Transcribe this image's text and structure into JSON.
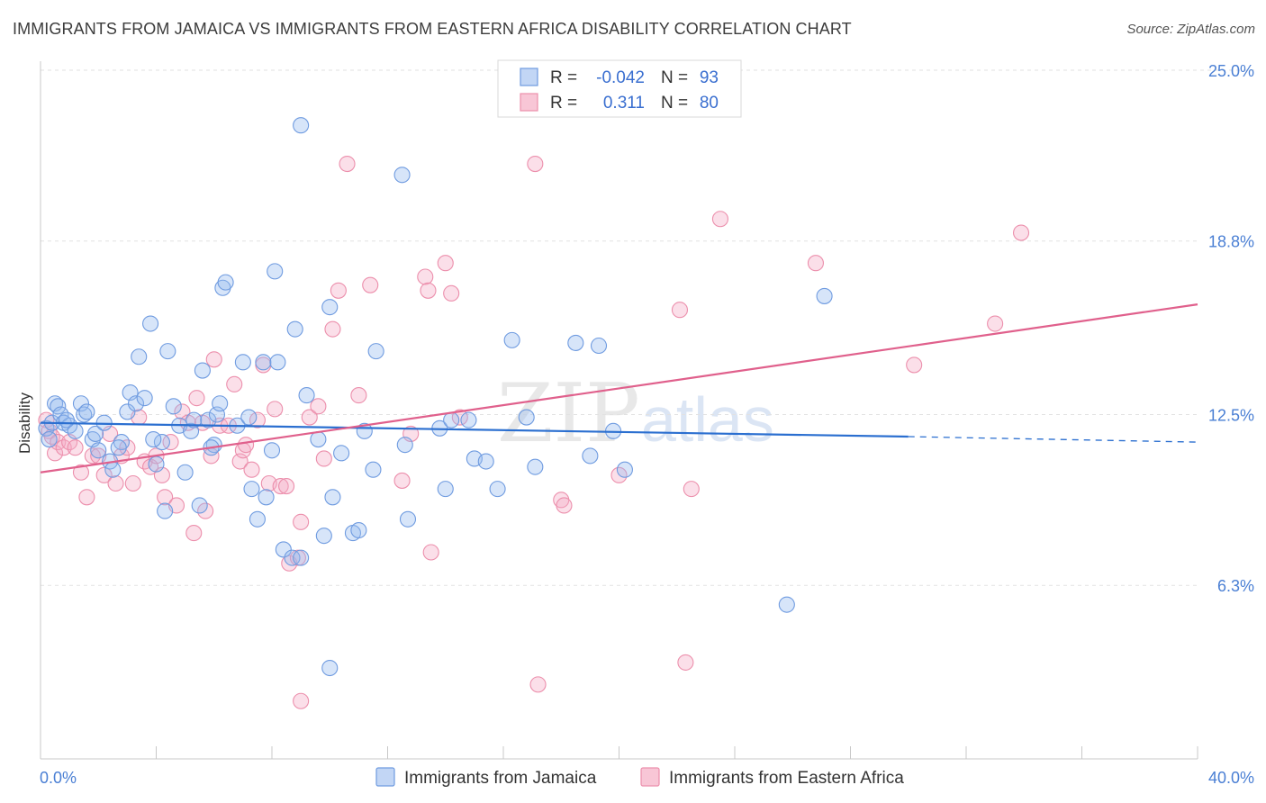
{
  "header": {
    "title": "IMMIGRANTS FROM JAMAICA VS IMMIGRANTS FROM EASTERN AFRICA DISABILITY CORRELATION CHART",
    "source": "Source: ZipAtlas.com"
  },
  "watermark": {
    "zip": "ZIP",
    "atlas": "atlas"
  },
  "legend": {
    "rows": [
      {
        "r_label": "R =",
        "r_value": "-0.042",
        "n_label": "N =",
        "n_value": "93"
      },
      {
        "r_label": "R =",
        "r_value": "0.311",
        "n_label": "N =",
        "n_value": "80"
      }
    ]
  },
  "chart_data": {
    "type": "scatter",
    "title": "IMMIGRANTS FROM JAMAICA VS IMMIGRANTS FROM EASTERN AFRICA DISABILITY CORRELATION CHART",
    "xlabel": "",
    "ylabel": "Disability",
    "xlim": [
      0,
      40
    ],
    "ylim": [
      0,
      25
    ],
    "x_tick_labels": [
      "0.0%",
      "40.0%"
    ],
    "y_tick_labels": [
      "25.0%",
      "18.8%",
      "12.5%",
      "6.3%"
    ],
    "y_tick_values": [
      25.0,
      18.8,
      12.5,
      6.3
    ],
    "grid": true,
    "legend_position": "top-center",
    "colors": {
      "jamaica": "#6f9be0",
      "eastern_africa": "#ec8fac",
      "jamaica_line": "#2b6fd0",
      "eastern_africa_line": "#e0608c"
    },
    "series": [
      {
        "name": "Immigrants from Jamaica",
        "r": -0.042,
        "n": 93,
        "trend": {
          "x": [
            0,
            30
          ],
          "y": [
            12.2,
            11.7
          ],
          "dashed_to_x": 40,
          "dashed_end_y": 11.5
        },
        "points": [
          [
            0.2,
            12.0
          ],
          [
            0.3,
            11.6
          ],
          [
            0.4,
            12.2
          ],
          [
            0.5,
            12.9
          ],
          [
            0.6,
            12.8
          ],
          [
            0.7,
            12.5
          ],
          [
            0.8,
            12.2
          ],
          [
            1.0,
            12.1
          ],
          [
            1.2,
            11.9
          ],
          [
            1.4,
            12.9
          ],
          [
            1.5,
            12.5
          ],
          [
            1.8,
            11.6
          ],
          [
            1.9,
            11.8
          ],
          [
            2.0,
            11.2
          ],
          [
            2.2,
            12.2
          ],
          [
            2.4,
            10.8
          ],
          [
            2.5,
            10.5
          ],
          [
            2.8,
            11.5
          ],
          [
            3.0,
            12.6
          ],
          [
            3.1,
            13.3
          ],
          [
            3.3,
            12.9
          ],
          [
            3.4,
            14.6
          ],
          [
            3.6,
            13.1
          ],
          [
            3.8,
            15.8
          ],
          [
            4.0,
            10.7
          ],
          [
            4.2,
            11.5
          ],
          [
            4.3,
            9.0
          ],
          [
            4.4,
            14.8
          ],
          [
            4.6,
            12.8
          ],
          [
            4.8,
            12.1
          ],
          [
            5.0,
            10.4
          ],
          [
            5.2,
            11.9
          ],
          [
            5.3,
            12.3
          ],
          [
            5.5,
            9.2
          ],
          [
            5.6,
            14.1
          ],
          [
            5.8,
            12.3
          ],
          [
            6.0,
            11.4
          ],
          [
            6.1,
            12.5
          ],
          [
            6.2,
            12.9
          ],
          [
            6.3,
            17.1
          ],
          [
            6.4,
            17.3
          ],
          [
            6.8,
            12.1
          ],
          [
            7.0,
            14.4
          ],
          [
            7.2,
            12.4
          ],
          [
            7.3,
            9.8
          ],
          [
            7.5,
            8.7
          ],
          [
            7.7,
            14.4
          ],
          [
            7.8,
            9.5
          ],
          [
            8.0,
            11.2
          ],
          [
            8.1,
            17.7
          ],
          [
            8.2,
            14.4
          ],
          [
            8.4,
            7.6
          ],
          [
            8.7,
            7.3
          ],
          [
            8.8,
            15.6
          ],
          [
            9.0,
            7.3
          ],
          [
            9.2,
            13.2
          ],
          [
            9.6,
            11.6
          ],
          [
            9.8,
            8.1
          ],
          [
            10.0,
            16.4
          ],
          [
            10.1,
            9.5
          ],
          [
            10.4,
            11.1
          ],
          [
            10.8,
            8.2
          ],
          [
            11.0,
            8.3
          ],
          [
            11.2,
            11.9
          ],
          [
            11.5,
            10.5
          ],
          [
            11.6,
            14.8
          ],
          [
            9.0,
            23.0
          ],
          [
            12.5,
            21.2
          ],
          [
            12.6,
            11.4
          ],
          [
            12.7,
            8.7
          ],
          [
            13.8,
            12.0
          ],
          [
            14.0,
            9.8
          ],
          [
            14.2,
            12.3
          ],
          [
            14.8,
            12.3
          ],
          [
            15.0,
            10.9
          ],
          [
            15.4,
            10.8
          ],
          [
            15.8,
            9.8
          ],
          [
            16.3,
            15.2
          ],
          [
            16.8,
            12.4
          ],
          [
            17.1,
            10.6
          ],
          [
            18.5,
            15.1
          ],
          [
            19.0,
            11.0
          ],
          [
            19.3,
            15.0
          ],
          [
            19.8,
            11.9
          ],
          [
            20.2,
            10.5
          ],
          [
            27.1,
            16.8
          ],
          [
            25.8,
            5.6
          ],
          [
            10.0,
            3.3
          ],
          [
            0.9,
            12.3
          ],
          [
            1.6,
            12.6
          ],
          [
            2.7,
            11.3
          ],
          [
            3.9,
            11.6
          ],
          [
            5.9,
            11.3
          ]
        ]
      },
      {
        "name": "Immigrants from Eastern Africa",
        "r": 0.311,
        "n": 80,
        "trend": {
          "x": [
            0,
            40
          ],
          "y": [
            10.4,
            16.5
          ]
        },
        "points": [
          [
            0.2,
            12.3
          ],
          [
            0.3,
            11.9
          ],
          [
            0.4,
            11.7
          ],
          [
            0.5,
            11.1
          ],
          [
            0.6,
            11.5
          ],
          [
            0.8,
            11.3
          ],
          [
            1.0,
            11.5
          ],
          [
            1.2,
            11.3
          ],
          [
            1.4,
            10.4
          ],
          [
            1.6,
            9.5
          ],
          [
            1.8,
            11.0
          ],
          [
            2.0,
            11.0
          ],
          [
            2.2,
            10.3
          ],
          [
            2.4,
            11.8
          ],
          [
            2.6,
            10.0
          ],
          [
            2.8,
            11.0
          ],
          [
            3.0,
            11.3
          ],
          [
            3.2,
            10.0
          ],
          [
            3.4,
            12.4
          ],
          [
            3.6,
            10.8
          ],
          [
            3.8,
            10.6
          ],
          [
            4.0,
            11.0
          ],
          [
            4.2,
            10.3
          ],
          [
            4.3,
            9.5
          ],
          [
            4.5,
            11.5
          ],
          [
            4.7,
            9.2
          ],
          [
            4.9,
            12.6
          ],
          [
            5.1,
            12.2
          ],
          [
            5.3,
            8.2
          ],
          [
            5.4,
            13.1
          ],
          [
            5.6,
            12.2
          ],
          [
            5.7,
            9.0
          ],
          [
            5.9,
            11.0
          ],
          [
            6.0,
            14.5
          ],
          [
            6.2,
            12.1
          ],
          [
            6.5,
            12.1
          ],
          [
            6.7,
            13.6
          ],
          [
            6.9,
            10.8
          ],
          [
            7.0,
            11.2
          ],
          [
            7.1,
            11.4
          ],
          [
            7.3,
            10.5
          ],
          [
            7.5,
            12.3
          ],
          [
            7.7,
            14.3
          ],
          [
            7.9,
            10.0
          ],
          [
            8.1,
            12.7
          ],
          [
            8.3,
            9.9
          ],
          [
            8.5,
            9.9
          ],
          [
            8.6,
            7.1
          ],
          [
            8.9,
            7.3
          ],
          [
            9.0,
            8.6
          ],
          [
            9.3,
            12.4
          ],
          [
            9.6,
            12.8
          ],
          [
            9.8,
            10.9
          ],
          [
            10.1,
            15.6
          ],
          [
            10.3,
            17.0
          ],
          [
            10.6,
            21.6
          ],
          [
            11.0,
            13.2
          ],
          [
            11.4,
            17.2
          ],
          [
            12.5,
            10.1
          ],
          [
            12.8,
            11.8
          ],
          [
            13.3,
            17.5
          ],
          [
            13.4,
            17.0
          ],
          [
            13.5,
            7.5
          ],
          [
            14.0,
            18.0
          ],
          [
            14.2,
            16.9
          ],
          [
            14.5,
            12.4
          ],
          [
            17.1,
            21.6
          ],
          [
            17.2,
            2.7
          ],
          [
            18.0,
            9.4
          ],
          [
            18.1,
            9.2
          ],
          [
            20.0,
            10.3
          ],
          [
            22.1,
            16.3
          ],
          [
            22.3,
            3.5
          ],
          [
            22.5,
            9.8
          ],
          [
            23.5,
            19.6
          ],
          [
            26.8,
            18.0
          ],
          [
            30.2,
            14.3
          ],
          [
            33.0,
            15.8
          ],
          [
            33.9,
            19.1
          ],
          [
            9.0,
            2.1
          ]
        ]
      }
    ],
    "bottom_legend": [
      "Immigrants from Jamaica",
      "Immigrants from Eastern Africa"
    ]
  }
}
